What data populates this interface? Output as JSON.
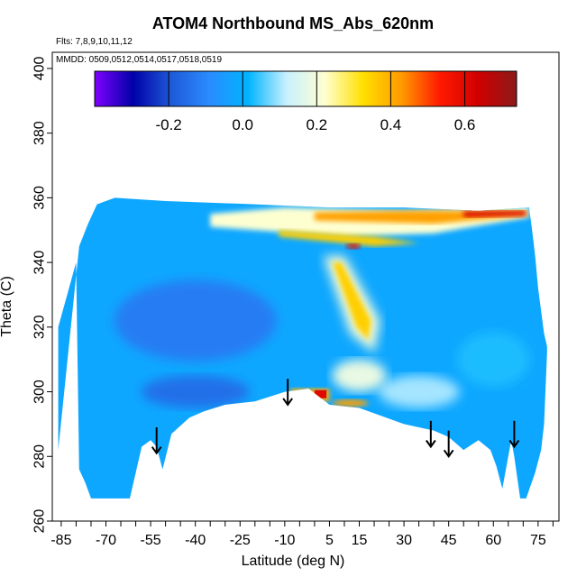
{
  "chart_data": {
    "type": "heatmap",
    "title": "ATOM4 Northbound MS_Abs_620nm",
    "annotations": {
      "flights": "Flts: 7,8,9,10,11,12",
      "dates": "MMDD: 0509,0512,0514,0517,0518,0519"
    },
    "xlabel": "Latitude (deg N)",
    "ylabel": "Theta (C)",
    "xlim": [
      -88,
      82
    ],
    "ylim": [
      260,
      405
    ],
    "x_tick_labels": [
      "-85",
      "-70",
      "-55",
      "-40",
      "-25",
      "-10",
      "5",
      "15",
      "30",
      "45",
      "60",
      "75"
    ],
    "x_tick_values": [
      -85,
      -70,
      -55,
      -40,
      -25,
      -10,
      5,
      15,
      30,
      45,
      60,
      75
    ],
    "y_tick_labels": [
      "260",
      "280",
      "300",
      "320",
      "340",
      "360",
      "380",
      "400"
    ],
    "y_tick_values": [
      260,
      280,
      300,
      320,
      340,
      360,
      380,
      400
    ],
    "colorbar": {
      "range": [
        -0.4,
        0.74
      ],
      "tick_labels": [
        "-0.2",
        "0.0",
        "0.2",
        "0.4",
        "0.6"
      ],
      "tick_values": [
        -0.2,
        0.0,
        0.2,
        0.4,
        0.6
      ],
      "colors": [
        "#7f00ff",
        "#0000a8",
        "#1e5ad8",
        "#2a8cff",
        "#00b4ff",
        "#c8f0ff",
        "#ffffd0",
        "#ffe000",
        "#ff9a00",
        "#ff1a00",
        "#d00000",
        "#8b1a1a"
      ]
    },
    "background_value": 0.0,
    "features": [
      {
        "name": "upper layer",
        "lat_range": [
          -10,
          72
        ],
        "theta_range": [
          348,
          358
        ],
        "peak_value": 0.62
      },
      {
        "name": "tropical plume",
        "lat_range": [
          8,
          20
        ],
        "theta_range": [
          315,
          340
        ],
        "peak_value": 0.35
      },
      {
        "name": "low enhancement",
        "lat_range": [
          -8,
          5
        ],
        "theta_range": [
          297,
          301
        ],
        "peak_value": 0.6
      }
    ],
    "arrows_latitude": [
      -53,
      -9,
      39,
      45,
      67
    ]
  }
}
